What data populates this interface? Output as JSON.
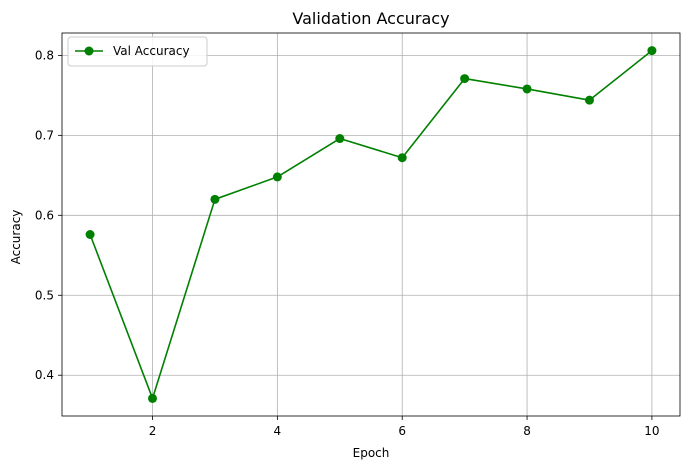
{
  "chart_data": {
    "type": "line",
    "title": "Validation Accuracy",
    "xlabel": "Epoch",
    "ylabel": "Accuracy",
    "xlim": [
      0.55,
      10.45
    ],
    "ylim": [
      0.349,
      0.828
    ],
    "xticks": [
      2,
      4,
      6,
      8,
      10
    ],
    "yticks": [
      0.4,
      0.5,
      0.6,
      0.7,
      0.8
    ],
    "xtick_labels": [
      "2",
      "4",
      "6",
      "8",
      "10"
    ],
    "ytick_labels": [
      "0.4",
      "0.5",
      "0.6",
      "0.7",
      "0.8"
    ],
    "grid": true,
    "legend_position": "top-left",
    "series": [
      {
        "name": "Val Accuracy",
        "color": "#008000",
        "marker": "circle",
        "x": [
          1,
          2,
          3,
          4,
          5,
          6,
          7,
          8,
          9,
          10
        ],
        "y": [
          0.576,
          0.371,
          0.62,
          0.648,
          0.696,
          0.672,
          0.771,
          0.758,
          0.744,
          0.806
        ]
      }
    ]
  }
}
